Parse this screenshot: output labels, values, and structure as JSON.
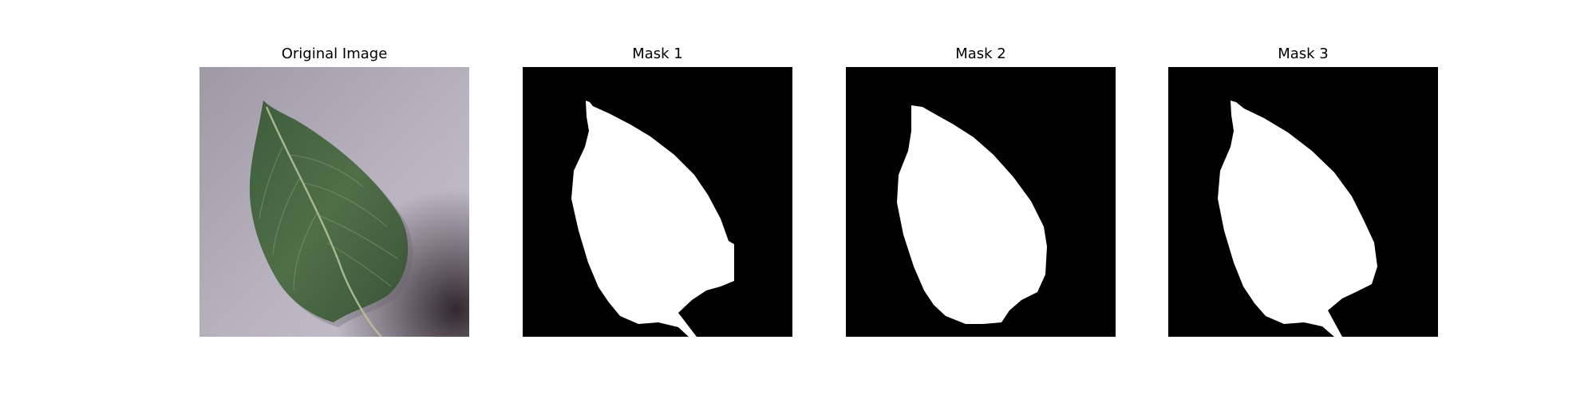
{
  "figure": {
    "panels": [
      {
        "title": "Original Image",
        "kind": "photo",
        "subject": "green leaf on grey textured surface"
      },
      {
        "title": "Mask 1",
        "kind": "mask",
        "subject": "white leaf silhouette on black"
      },
      {
        "title": "Mask 2",
        "kind": "mask",
        "subject": "white leaf silhouette on black"
      },
      {
        "title": "Mask 3",
        "kind": "mask",
        "subject": "white leaf silhouette on black"
      }
    ]
  },
  "colors": {
    "background": "#ffffff",
    "mask_background": "#000000",
    "mask_foreground": "#ffffff",
    "leaf_dark": "#3f5a39",
    "leaf_light": "#5f7f56",
    "surface": "#b8b0bf"
  }
}
